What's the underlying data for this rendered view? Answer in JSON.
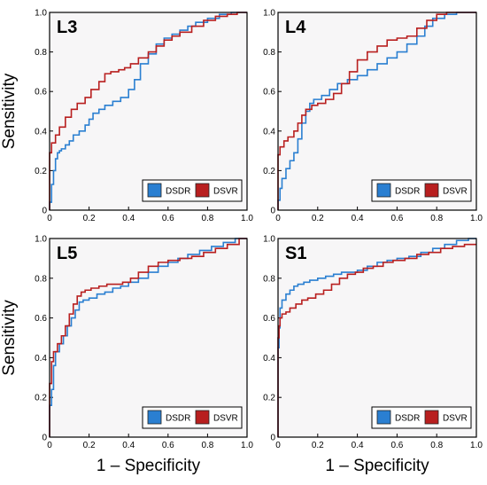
{
  "chart_data": [
    {
      "type": "line",
      "title": "L3",
      "xlabel": "",
      "ylabel": "Sensitivity",
      "xlim": [
        0,
        1
      ],
      "ylim": [
        0,
        1
      ],
      "xticks": [
        "0",
        "0.2",
        "0.4",
        "0.6",
        "0.8",
        "1.0"
      ],
      "yticks": [
        "0",
        "0.2",
        "0.4",
        "0.6",
        "0.8",
        "1.0"
      ],
      "legend_position": "bottom-right",
      "series": [
        {
          "name": "DSDR",
          "color": "#2a7fd1",
          "x": [
            0,
            0.01,
            0.02,
            0.03,
            0.04,
            0.05,
            0.06,
            0.08,
            0.1,
            0.12,
            0.15,
            0.18,
            0.2,
            0.22,
            0.25,
            0.28,
            0.32,
            0.36,
            0.4,
            0.43,
            0.46,
            0.5,
            0.54,
            0.58,
            0.62,
            0.66,
            0.7,
            0.74,
            0.8,
            0.86,
            0.92,
            1.0
          ],
          "y": [
            0,
            0.04,
            0.13,
            0.2,
            0.26,
            0.29,
            0.3,
            0.31,
            0.33,
            0.35,
            0.38,
            0.4,
            0.43,
            0.46,
            0.49,
            0.51,
            0.53,
            0.55,
            0.57,
            0.61,
            0.66,
            0.74,
            0.79,
            0.84,
            0.87,
            0.89,
            0.91,
            0.93,
            0.95,
            0.97,
            0.99,
            1.0
          ]
        },
        {
          "name": "DSVR",
          "color": "#b81f1f",
          "x": [
            0,
            0.01,
            0.03,
            0.05,
            0.08,
            0.11,
            0.14,
            0.18,
            0.21,
            0.25,
            0.28,
            0.31,
            0.35,
            0.38,
            0.41,
            0.45,
            0.5,
            0.54,
            0.58,
            0.62,
            0.66,
            0.72,
            0.78,
            0.84,
            0.9,
            0.95,
            1.0
          ],
          "y": [
            0,
            0.29,
            0.34,
            0.38,
            0.42,
            0.47,
            0.51,
            0.54,
            0.57,
            0.61,
            0.65,
            0.69,
            0.7,
            0.71,
            0.72,
            0.74,
            0.77,
            0.8,
            0.83,
            0.86,
            0.88,
            0.9,
            0.93,
            0.96,
            0.98,
            0.99,
            1.0
          ]
        }
      ]
    },
    {
      "type": "line",
      "title": "L4",
      "xlabel": "",
      "ylabel": "",
      "xlim": [
        0,
        1
      ],
      "ylim": [
        0,
        1
      ],
      "xticks": [
        "0",
        "0.2",
        "0.4",
        "0.6",
        "0.8",
        "1.0"
      ],
      "yticks": [
        "0",
        "0.2",
        "0.4",
        "0.6",
        "0.8",
        "1.0"
      ],
      "legend_position": "bottom-right",
      "series": [
        {
          "name": "DSDR",
          "color": "#2a7fd1",
          "x": [
            0,
            0.01,
            0.02,
            0.04,
            0.06,
            0.08,
            0.1,
            0.12,
            0.14,
            0.16,
            0.18,
            0.22,
            0.26,
            0.3,
            0.35,
            0.4,
            0.45,
            0.5,
            0.55,
            0.6,
            0.65,
            0.7,
            0.74,
            0.78,
            0.84,
            0.9,
            1.0
          ],
          "y": [
            0,
            0.05,
            0.11,
            0.16,
            0.21,
            0.25,
            0.29,
            0.36,
            0.44,
            0.5,
            0.54,
            0.56,
            0.58,
            0.61,
            0.64,
            0.66,
            0.68,
            0.71,
            0.74,
            0.77,
            0.8,
            0.84,
            0.88,
            0.93,
            0.97,
            0.99,
            1.0
          ]
        },
        {
          "name": "DSVR",
          "color": "#b81f1f",
          "x": [
            0,
            0.01,
            0.03,
            0.05,
            0.08,
            0.1,
            0.12,
            0.14,
            0.17,
            0.2,
            0.24,
            0.28,
            0.32,
            0.36,
            0.4,
            0.45,
            0.5,
            0.55,
            0.6,
            0.65,
            0.7,
            0.75,
            0.8,
            0.85,
            0.92,
            1.0
          ],
          "y": [
            0,
            0.28,
            0.32,
            0.35,
            0.37,
            0.4,
            0.44,
            0.48,
            0.51,
            0.53,
            0.54,
            0.56,
            0.59,
            0.64,
            0.7,
            0.76,
            0.8,
            0.83,
            0.86,
            0.87,
            0.88,
            0.92,
            0.96,
            0.99,
            1.0,
            1.0
          ]
        }
      ]
    },
    {
      "type": "line",
      "title": "L5",
      "xlabel": "1 – Specificity",
      "ylabel": "Sensitivity",
      "xlim": [
        0,
        1
      ],
      "ylim": [
        0,
        1
      ],
      "xticks": [
        "0",
        "0.2",
        "0.4",
        "0.6",
        "0.8",
        "1.0"
      ],
      "yticks": [
        "0",
        "0.2",
        "0.4",
        "0.6",
        "0.8",
        "1.0"
      ],
      "legend_position": "bottom-right",
      "series": [
        {
          "name": "DSDR",
          "color": "#2a7fd1",
          "x": [
            0,
            0.01,
            0.02,
            0.03,
            0.05,
            0.07,
            0.09,
            0.11,
            0.13,
            0.15,
            0.17,
            0.2,
            0.24,
            0.28,
            0.32,
            0.36,
            0.4,
            0.45,
            0.5,
            0.55,
            0.6,
            0.65,
            0.7,
            0.76,
            0.82,
            0.88,
            0.94,
            1.0
          ],
          "y": [
            0,
            0.16,
            0.24,
            0.36,
            0.43,
            0.47,
            0.51,
            0.56,
            0.6,
            0.64,
            0.68,
            0.69,
            0.7,
            0.72,
            0.73,
            0.75,
            0.76,
            0.78,
            0.8,
            0.83,
            0.86,
            0.88,
            0.9,
            0.92,
            0.94,
            0.96,
            0.98,
            1.0
          ]
        },
        {
          "name": "DSVR",
          "color": "#b81f1f",
          "x": [
            0,
            0.01,
            0.02,
            0.04,
            0.06,
            0.08,
            0.1,
            0.12,
            0.14,
            0.16,
            0.18,
            0.21,
            0.25,
            0.29,
            0.33,
            0.37,
            0.41,
            0.45,
            0.5,
            0.55,
            0.6,
            0.66,
            0.72,
            0.78,
            0.84,
            0.9,
            0.96,
            1.0
          ],
          "y": [
            0,
            0.27,
            0.38,
            0.43,
            0.47,
            0.51,
            0.56,
            0.62,
            0.67,
            0.71,
            0.73,
            0.74,
            0.75,
            0.76,
            0.77,
            0.77,
            0.78,
            0.8,
            0.83,
            0.86,
            0.88,
            0.89,
            0.9,
            0.91,
            0.93,
            0.95,
            0.97,
            1.0
          ]
        }
      ]
    },
    {
      "type": "line",
      "title": "S1",
      "xlabel": "1 – Specificity",
      "ylabel": "",
      "xlim": [
        0,
        1
      ],
      "ylim": [
        0,
        1
      ],
      "xticks": [
        "0",
        "0.2",
        "0.4",
        "0.6",
        "0.8",
        "1.0"
      ],
      "yticks": [
        "0",
        "0.2",
        "0.4",
        "0.6",
        "0.8",
        "1.0"
      ],
      "legend_position": "bottom-right",
      "series": [
        {
          "name": "DSDR",
          "color": "#2a7fd1",
          "x": [
            0,
            0.005,
            0.01,
            0.02,
            0.04,
            0.06,
            0.08,
            0.1,
            0.13,
            0.16,
            0.2,
            0.24,
            0.28,
            0.32,
            0.36,
            0.4,
            0.45,
            0.5,
            0.55,
            0.6,
            0.66,
            0.72,
            0.78,
            0.84,
            0.9,
            0.96,
            1.0
          ],
          "y": [
            0,
            0.45,
            0.55,
            0.65,
            0.69,
            0.72,
            0.74,
            0.76,
            0.77,
            0.78,
            0.79,
            0.8,
            0.81,
            0.82,
            0.83,
            0.83,
            0.84,
            0.86,
            0.88,
            0.89,
            0.9,
            0.91,
            0.93,
            0.95,
            0.97,
            0.99,
            1.0
          ]
        },
        {
          "name": "DSVR",
          "color": "#b81f1f",
          "x": [
            0,
            0.005,
            0.01,
            0.02,
            0.04,
            0.06,
            0.09,
            0.12,
            0.15,
            0.19,
            0.23,
            0.27,
            0.31,
            0.35,
            0.39,
            0.43,
            0.48,
            0.53,
            0.58,
            0.64,
            0.7,
            0.76,
            0.82,
            0.88,
            0.94,
            1.0
          ],
          "y": [
            0,
            0.5,
            0.56,
            0.6,
            0.62,
            0.63,
            0.65,
            0.67,
            0.69,
            0.7,
            0.72,
            0.74,
            0.77,
            0.8,
            0.82,
            0.83,
            0.85,
            0.86,
            0.88,
            0.89,
            0.9,
            0.92,
            0.93,
            0.95,
            0.96,
            0.97
          ]
        }
      ]
    }
  ]
}
